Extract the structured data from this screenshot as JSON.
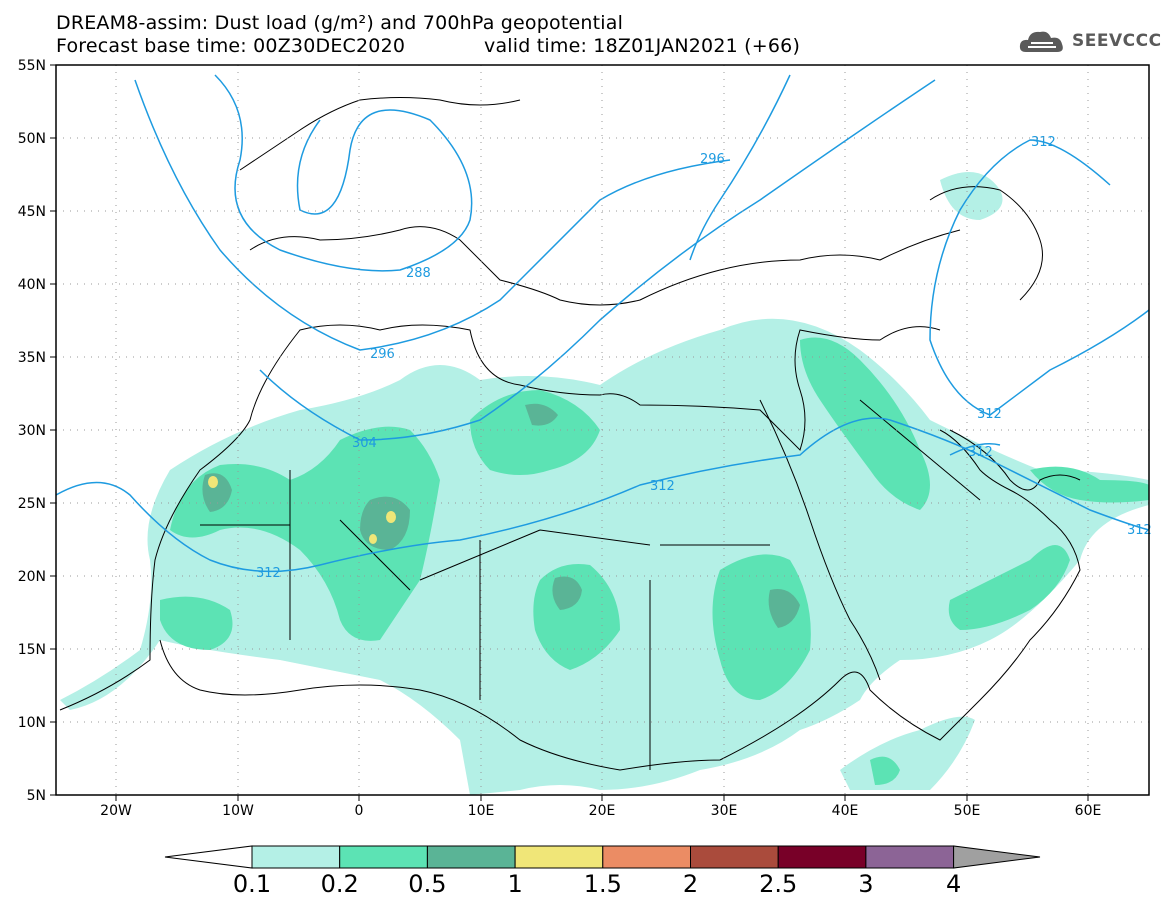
{
  "header": {
    "line1": "DREAM8-assim: Dust load (g/m²) and 700hPa geopotential",
    "line2_left": "Forecast base time: 00Z30DEC2020",
    "line2_right": "valid time: 18Z01JAN2021 (+66)"
  },
  "logo": {
    "text": "SEEVCCC",
    "icon": "cloud-logo-icon"
  },
  "map": {
    "extent": {
      "lon": [
        -25,
        65
      ],
      "lat": [
        5,
        55
      ]
    },
    "lat_ticks": [
      "5N",
      "10N",
      "15N",
      "20N",
      "25N",
      "30N",
      "35N",
      "40N",
      "45N",
      "50N",
      "55N"
    ],
    "lon_ticks": [
      "20W",
      "10W",
      "0",
      "10E",
      "20E",
      "30E",
      "40E",
      "50E",
      "60E"
    ],
    "contour_labels": [
      "288",
      "296",
      "296",
      "304",
      "312",
      "312",
      "312",
      "312",
      "312",
      "312"
    ],
    "contour_color": "#1e9be0"
  },
  "colorbar": {
    "labels": [
      "0.1",
      "0.2",
      "0.5",
      "1",
      "1.5",
      "2",
      "2.5",
      "3",
      "4"
    ],
    "colors": [
      "#ffffff",
      "#b4f0e6",
      "#5ce3b4",
      "#5ab496",
      "#f0e678",
      "#eb8c64",
      "#aa4b3c",
      "#780028",
      "#8c6496",
      "#a0a0a0"
    ]
  }
}
